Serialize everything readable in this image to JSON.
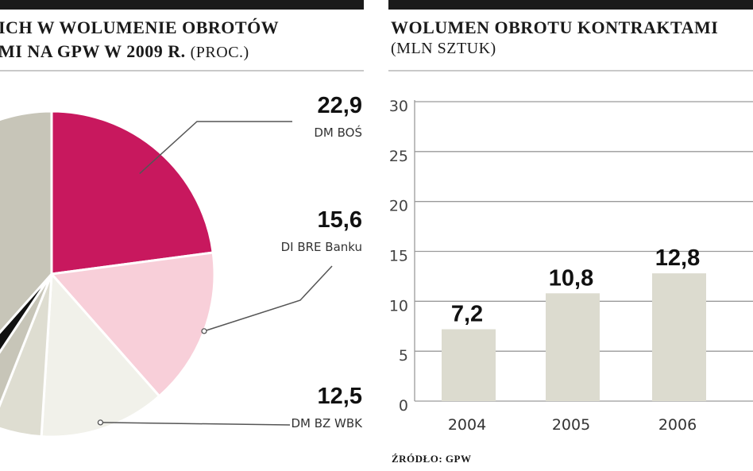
{
  "left_chart": {
    "title_line1": "ICH W WOLUMENIE OBROTÓW",
    "title_line2": "MI NA GPW W 2009 R.",
    "unit": "(PROC.)"
  },
  "right_chart": {
    "title": "WOLUMEN OBROTU KONTRAKTAMI",
    "unit": "(MLN SZTUK)"
  },
  "source": "ŹRÓDŁO: GPW",
  "colors": {
    "magenta": "#c8185e",
    "pink": "#f8cfd9",
    "cream": "#f1f1ea",
    "beige": "#deddd1",
    "dark": "#111111",
    "gray": "#c7c5b8",
    "bar": "#dcdbcf"
  },
  "chart_data": [
    {
      "type": "pie",
      "title": "ICH W WOLUMENIE OBROTÓW MI NA GPW W 2009 R. (PROC.)",
      "slices": [
        {
          "label": "DM BOŚ",
          "value": 22.9,
          "value_label": "22,9"
        },
        {
          "label": "DI BRE Banku",
          "value": 15.6,
          "value_label": "15,6"
        },
        {
          "label": "DM BZ WBK",
          "value": 12.5,
          "value_label": "12,5"
        }
      ]
    },
    {
      "type": "bar",
      "title": "WOLUMEN OBROTU KONTRAKTAMI (MLN SZTUK)",
      "categories": [
        "2004",
        "2005",
        "2006"
      ],
      "values": [
        7.2,
        10.8,
        12.8
      ],
      "value_labels": [
        "7,2",
        "10,8",
        "12,8"
      ],
      "ylim": [
        0,
        30
      ],
      "yticks": [
        "0",
        "5",
        "10",
        "15",
        "20",
        "25",
        "30"
      ],
      "grid": true
    }
  ]
}
